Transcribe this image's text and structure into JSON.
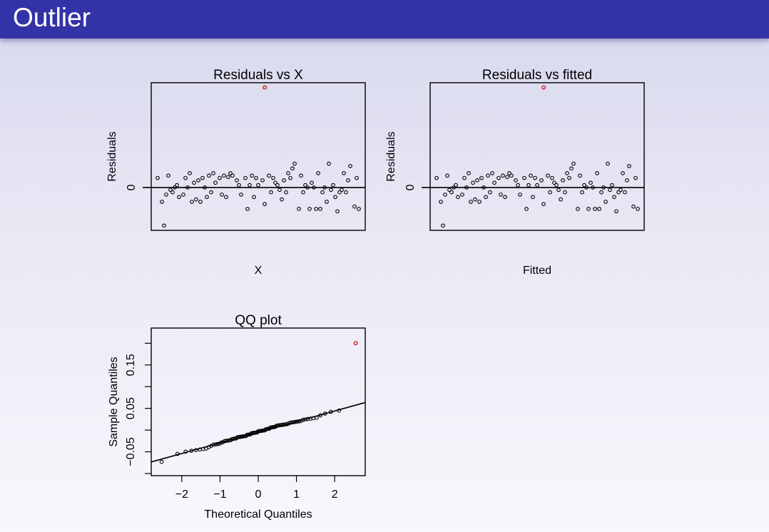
{
  "page": {
    "title": "Outlier"
  },
  "colors": {
    "title_bar": "#3333a8",
    "outlier": "#d62020",
    "points": "#000000"
  },
  "chart_data": [
    {
      "type": "scatter",
      "title": "Residuals vs X",
      "xlabel": "X",
      "ylabel": "Residuals",
      "y_ticks": [
        0
      ],
      "y_tick_labels": [
        "0"
      ],
      "reference_line": "horizontal at 0",
      "ylim": [
        -0.09,
        0.22
      ],
      "xlim": [
        0,
        100
      ],
      "x": [
        3,
        5,
        6,
        7,
        8,
        9,
        10,
        11,
        12,
        13,
        15,
        16,
        17,
        18,
        19,
        20,
        21,
        22,
        23,
        24,
        25,
        26,
        27,
        28,
        29,
        30,
        32,
        33,
        34,
        35,
        36,
        37,
        38,
        40,
        41,
        42,
        44,
        45,
        46,
        47,
        48,
        49,
        50,
        52,
        53,
        55,
        56,
        57,
        58,
        59,
        60,
        61,
        62,
        63,
        64,
        65,
        66,
        67,
        69,
        70,
        71,
        72,
        73,
        74,
        75,
        76,
        77,
        78,
        79,
        80,
        81,
        82,
        83,
        84,
        85,
        86,
        87,
        88,
        89,
        90,
        91,
        92,
        93,
        95,
        96,
        97
      ],
      "y": [
        0.02,
        -0.03,
        -0.08,
        -0.015,
        0.025,
        -0.005,
        -0.01,
        0.0,
        0.005,
        -0.02,
        -0.015,
        0.02,
        0.0,
        0.03,
        -0.03,
        0.01,
        -0.025,
        0.015,
        -0.03,
        0.02,
        0.0,
        -0.02,
        0.025,
        -0.01,
        0.03,
        0.01,
        0.02,
        -0.015,
        0.025,
        -0.02,
        0.022,
        0.03,
        0.025,
        0.015,
        0.005,
        -0.015,
        0.02,
        -0.045,
        0.005,
        0.025,
        -0.02,
        0.02,
        0.005,
        0.015,
        -0.035,
        0.025,
        -0.01,
        0.02,
        0.01,
        0.005,
        -0.005,
        -0.025,
        0.015,
        -0.01,
        0.03,
        0.02,
        0.04,
        0.05,
        -0.045,
        0.025,
        -0.01,
        0.005,
        0.0,
        -0.045,
        0.01,
        0.0,
        -0.045,
        0.03,
        -0.045,
        -0.01,
        0.0,
        -0.03,
        0.05,
        -0.005,
        0.005,
        -0.02,
        -0.05,
        -0.01,
        -0.005,
        0.03,
        -0.01,
        0.015,
        0.045,
        -0.04,
        0.02,
        -0.045
      ],
      "highlight": [
        {
          "x": 53,
          "y": 0.21
        }
      ]
    },
    {
      "type": "scatter",
      "title": "Residuals vs fitted",
      "xlabel": "Fitted",
      "ylabel": "Residuals",
      "y_ticks": [
        0
      ],
      "y_tick_labels": [
        "0"
      ],
      "reference_line": "horizontal at 0",
      "ylim": [
        -0.09,
        0.22
      ],
      "xlim": [
        0,
        100
      ],
      "x": [
        3,
        5,
        6,
        7,
        8,
        9,
        10,
        11,
        12,
        13,
        15,
        16,
        17,
        18,
        19,
        20,
        21,
        22,
        23,
        24,
        25,
        26,
        27,
        28,
        29,
        30,
        32,
        33,
        34,
        35,
        36,
        37,
        38,
        40,
        41,
        42,
        44,
        45,
        46,
        47,
        48,
        49,
        50,
        52,
        53,
        55,
        56,
        57,
        58,
        59,
        60,
        61,
        62,
        63,
        64,
        65,
        66,
        67,
        69,
        70,
        71,
        72,
        73,
        74,
        75,
        76,
        77,
        78,
        79,
        80,
        81,
        82,
        83,
        84,
        85,
        86,
        87,
        88,
        89,
        90,
        91,
        92,
        93,
        95,
        96,
        97
      ],
      "y": [
        0.02,
        -0.03,
        -0.08,
        -0.015,
        0.025,
        -0.005,
        -0.01,
        0.0,
        0.005,
        -0.02,
        -0.015,
        0.02,
        0.0,
        0.03,
        -0.03,
        0.01,
        -0.025,
        0.015,
        -0.03,
        0.02,
        0.0,
        -0.02,
        0.025,
        -0.01,
        0.03,
        0.01,
        0.02,
        -0.015,
        0.025,
        -0.02,
        0.022,
        0.03,
        0.025,
        0.015,
        0.005,
        -0.015,
        0.02,
        -0.045,
        0.005,
        0.025,
        -0.02,
        0.02,
        0.005,
        0.015,
        -0.035,
        0.025,
        -0.01,
        0.02,
        0.01,
        0.005,
        -0.005,
        -0.025,
        0.015,
        -0.01,
        0.03,
        0.02,
        0.04,
        0.05,
        -0.045,
        0.025,
        -0.01,
        0.005,
        0.0,
        -0.045,
        0.01,
        0.0,
        -0.045,
        0.03,
        -0.045,
        -0.01,
        0.0,
        -0.03,
        0.05,
        -0.005,
        0.005,
        -0.02,
        -0.05,
        -0.01,
        -0.005,
        0.03,
        -0.01,
        0.015,
        0.045,
        -0.04,
        0.02,
        -0.045
      ],
      "highlight": [
        {
          "x": 53,
          "y": 0.21
        }
      ]
    },
    {
      "type": "scatter",
      "title": "QQ plot",
      "xlabel": "Theoretical Quantiles",
      "ylabel": "Sample Quantiles",
      "x_ticks": [
        -2,
        -1,
        0,
        1,
        2
      ],
      "x_tick_labels": [
        "−2",
        "−1",
        "0",
        "1",
        "2"
      ],
      "y_ticks": [
        -0.05,
        0.05,
        0.15
      ],
      "y_tick_labels": [
        "−0.05",
        "0.05",
        "0.15"
      ],
      "y_minor_ticks": [
        -0.1,
        0.0,
        0.1,
        0.2
      ],
      "xlim": [
        -2.8,
        2.8
      ],
      "ylim": [
        -0.105,
        0.235
      ],
      "reference_line": {
        "x": [
          -2.8,
          2.8
        ],
        "y": [
          -0.0735,
          0.0635
        ]
      },
      "highlight": [
        {
          "x": 2.55,
          "y": 0.2
        }
      ]
    }
  ]
}
